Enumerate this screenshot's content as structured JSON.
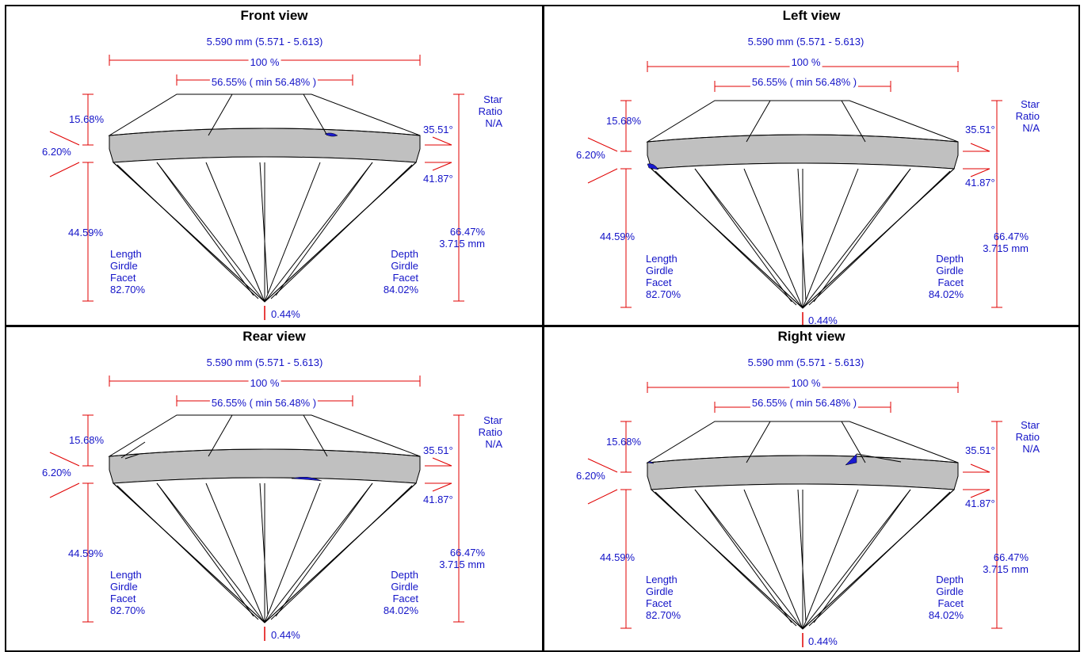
{
  "views": [
    {
      "id": "front",
      "title": "Front view"
    },
    {
      "id": "left",
      "title": "Left view"
    },
    {
      "id": "rear",
      "title": "Rear view"
    },
    {
      "id": "right",
      "title": "Right view"
    }
  ],
  "measurements": {
    "diameter": "5.590 mm (5.571 - 5.613)",
    "total_width": "100 %",
    "table": "56.55% ( min 56.48% )",
    "crown_height": "15.68%",
    "girdle": "6.20%",
    "pavilion_depth": "44.59%",
    "crown_angle": "35.51°",
    "pavilion_angle": "41.87°",
    "star_ratio": [
      "Star",
      "Ratio",
      "N/A"
    ],
    "total_depth": [
      "66.47%",
      "3.715 mm"
    ],
    "length_girdle_facet": [
      "Length",
      "Girdle",
      "Facet",
      "82.70%"
    ],
    "depth_girdle_facet": [
      "Depth",
      "Girdle",
      "Facet",
      "84.02%"
    ],
    "culet": "0.44%"
  },
  "colors": {
    "dimension_lines": "#e00000",
    "labels": "#1414c8",
    "girdle_fill": "#c0c0c0",
    "inclusion": "#1a1ad0",
    "outline": "#000000"
  }
}
